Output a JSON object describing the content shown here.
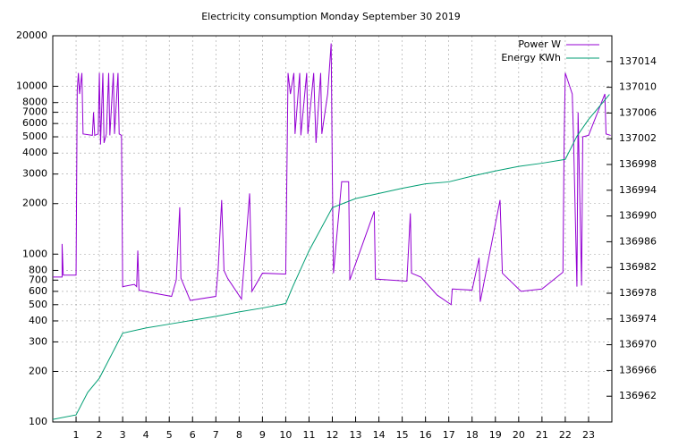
{
  "chart_data": {
    "type": "line",
    "title": "Electricity consumption Monday September 30 2019",
    "xlim": [
      0,
      24
    ],
    "xticks": [
      1,
      2,
      3,
      4,
      5,
      6,
      7,
      8,
      9,
      10,
      11,
      12,
      13,
      14,
      15,
      16,
      17,
      18,
      19,
      20,
      21,
      22,
      23
    ],
    "ylim": [
      100,
      20000
    ],
    "log_y": true,
    "yticks": [
      100,
      200,
      300,
      400,
      500,
      600,
      700,
      800,
      1000,
      2000,
      3000,
      4000,
      5000,
      6000,
      7000,
      8000,
      10000,
      20000
    ],
    "y2lim": [
      136958,
      137018
    ],
    "y2ticks": [
      136962,
      136966,
      136970,
      136974,
      136978,
      136982,
      136986,
      136990,
      136994,
      136998,
      137002,
      137006,
      137010,
      137014
    ],
    "grid": true,
    "legend": "top-right",
    "series": [
      {
        "name": "Power W",
        "color": "#9400d3",
        "x": [
          0,
          0.4,
          0.4,
          0.45,
          1.0,
          1.05,
          1.1,
          1.15,
          1.25,
          1.3,
          1.7,
          1.75,
          1.8,
          1.95,
          2.0,
          2.05,
          2.15,
          2.2,
          2.3,
          2.4,
          2.45,
          2.6,
          2.65,
          2.8,
          2.85,
          2.95,
          3.0,
          3.5,
          3.6,
          3.65,
          3.7,
          4.2,
          5.1,
          5.3,
          5.45,
          5.5,
          5.9,
          7.0,
          7.1,
          7.25,
          7.35,
          7.5,
          8.1,
          8.45,
          8.55,
          9.0,
          10.0,
          10.1,
          10.2,
          10.35,
          10.4,
          10.6,
          10.65,
          10.9,
          10.95,
          11.2,
          11.3,
          11.5,
          11.55,
          11.8,
          11.95,
          12.0,
          12.05,
          12.4,
          12.7,
          12.75,
          13.8,
          13.85,
          15.2,
          15.35,
          15.4,
          15.8,
          16.5,
          17.1,
          17.15,
          18.0,
          18.3,
          18.35,
          19.2,
          19.3,
          20.1,
          21.0,
          21.9,
          21.95,
          22.0,
          22.3,
          22.35,
          22.5,
          22.55,
          22.7,
          22.75,
          23.0,
          23.7,
          23.75,
          23.95
        ],
        "values": [
          730,
          730,
          1150,
          750,
          750,
          9500,
          12000,
          9000,
          12000,
          5200,
          5100,
          7000,
          5100,
          5200,
          12000,
          4500,
          12000,
          4600,
          5200,
          12000,
          5100,
          12000,
          5200,
          12000,
          5200,
          5100,
          640,
          660,
          640,
          1050,
          610,
          590,
          560,
          700,
          1900,
          720,
          530,
          560,
          820,
          2100,
          800,
          720,
          540,
          2300,
          600,
          770,
          760,
          12000,
          9000,
          12000,
          5200,
          12000,
          5100,
          12000,
          5200,
          12000,
          4600,
          12000,
          5200,
          9000,
          18000,
          3000,
          770,
          2700,
          2700,
          700,
          1800,
          710,
          690,
          1750,
          770,
          730,
          570,
          500,
          620,
          610,
          950,
          520,
          2100,
          770,
          600,
          620,
          780,
          4500,
          12000,
          9000,
          5200,
          640,
          7000,
          650,
          5000,
          5100,
          9000,
          5200,
          5100
        ]
      },
      {
        "name": "Energy KWh",
        "color": "#009e73",
        "axis": "y2",
        "x": [
          0,
          1.0,
          1.5,
          2.0,
          3.0,
          4.0,
          5.0,
          6.0,
          7.0,
          8.0,
          9.0,
          10.0,
          10.3,
          11.0,
          12.0,
          13.0,
          14.0,
          15.0,
          16.0,
          17.0,
          18.0,
          19.0,
          20.0,
          21.0,
          22.0,
          22.5,
          23.0,
          23.9
        ],
        "values": [
          136958.4,
          136959.1,
          136962.6,
          136964.8,
          136971.8,
          136972.6,
          136973.2,
          136973.8,
          136974.4,
          136975.1,
          136975.7,
          136976.4,
          136979,
          136984.6,
          136991.3,
          136992.7,
          136993.5,
          136994.3,
          136995,
          136995.3,
          136996.2,
          136997,
          136997.7,
          136998.2,
          136998.8,
          137002.4,
          137005,
          137008.9
        ]
      }
    ]
  }
}
